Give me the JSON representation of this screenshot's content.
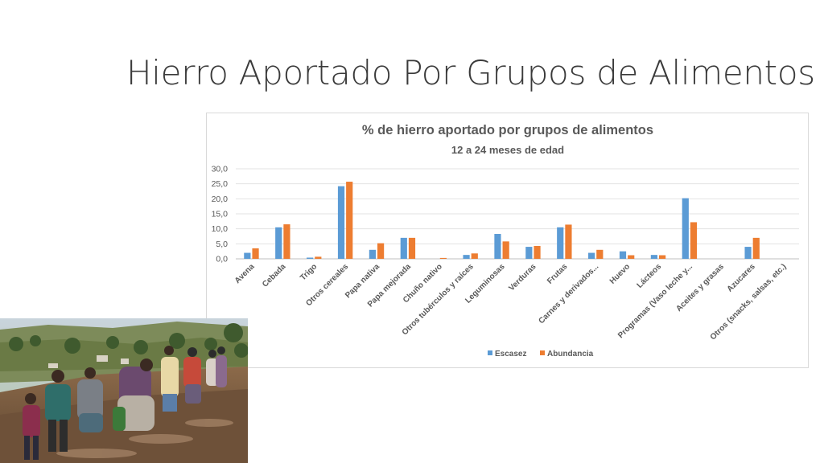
{
  "slide": {
    "title": "Hierro Aportado Por  Grupos de Alimentos"
  },
  "photo": {
    "description_icon": "field-workers-photo"
  },
  "chart_data": {
    "type": "bar",
    "title": "% de hierro aportado por grupos de alimentos",
    "subtitle": "12 a 24 meses de edad",
    "xlabel": "",
    "ylabel": "",
    "ylim": [
      0,
      30
    ],
    "yticks": [
      "0,0",
      "5,0",
      "10,0",
      "15,0",
      "20,0",
      "25,0",
      "30,0"
    ],
    "grid": true,
    "legend_position": "bottom",
    "categories": [
      "Avena",
      "Cebada",
      "Trigo",
      "Otros cereales",
      "Papa nativa",
      "Papa mejorada",
      "Chuño nativo",
      "Otros tubérculos y raíces",
      "Leguminosas",
      "Verduras",
      "Frutas",
      "Carnes y derivados...",
      "Huevo",
      "Lácteos",
      "Programas (Vaso leche y...",
      "Aceites y grasas",
      "Azucares",
      "Otros (snacks, salsas, etc.)"
    ],
    "series": [
      {
        "name": "Escasez",
        "color": "#5b9bd5",
        "values": [
          2.0,
          10.5,
          0.4,
          24.2,
          3.0,
          7.0,
          0.0,
          1.3,
          8.3,
          4.0,
          10.5,
          2.0,
          2.5,
          1.3,
          20.2,
          0.0,
          4.0,
          0.0
        ]
      },
      {
        "name": "Abundancia",
        "color": "#ed7d31",
        "values": [
          3.5,
          11.5,
          0.7,
          25.7,
          5.2,
          7.0,
          0.3,
          1.8,
          5.8,
          4.3,
          11.4,
          3.0,
          1.2,
          1.2,
          12.2,
          0.0,
          7.0,
          0.0
        ]
      }
    ]
  }
}
